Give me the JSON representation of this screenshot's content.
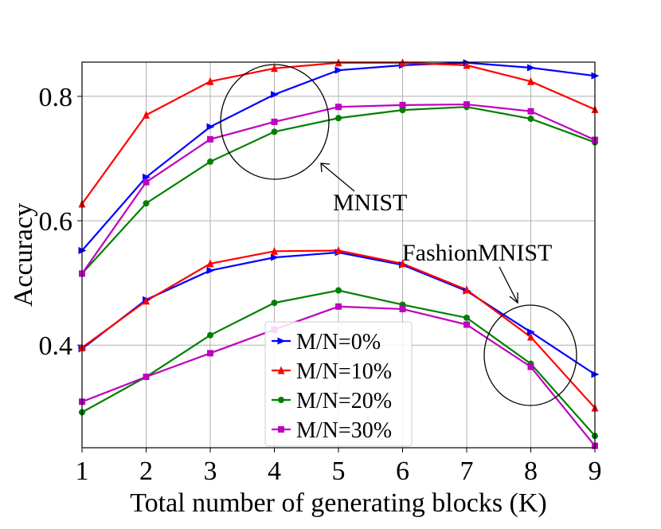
{
  "chart_data": {
    "type": "line",
    "title": "",
    "xlabel": "Total number of generating blocks (K)",
    "ylabel": "Accuracy",
    "x": [
      1,
      2,
      3,
      4,
      5,
      6,
      7,
      8,
      9
    ],
    "xlim": [
      1,
      9
    ],
    "ylim": [
      0.235,
      0.855
    ],
    "xticks": [
      "1",
      "2",
      "3",
      "4",
      "5",
      "6",
      "7",
      "8",
      "9"
    ],
    "yticks": [
      "0.4",
      "0.6",
      "0.8"
    ],
    "ytick_values": [
      0.4,
      0.6,
      0.8
    ],
    "grid": true,
    "legend_position": "bottom-center",
    "groups": [
      {
        "name": "MNIST",
        "series": [
          {
            "name": "M/N=0%",
            "color": "#0000ff",
            "marker": "triangle-right",
            "values": [
              0.552,
              0.67,
              0.751,
              0.803,
              0.842,
              0.85,
              0.854,
              0.846,
              0.833
            ]
          },
          {
            "name": "M/N=10%",
            "color": "#ff0000",
            "marker": "triangle-up",
            "values": [
              0.627,
              0.77,
              0.824,
              0.845,
              0.854,
              0.854,
              0.85,
              0.824,
              0.779
            ]
          },
          {
            "name": "M/N=20%",
            "color": "#008000",
            "marker": "circle",
            "values": [
              0.515,
              0.628,
              0.695,
              0.743,
              0.765,
              0.778,
              0.783,
              0.764,
              0.726
            ]
          },
          {
            "name": "M/N=30%",
            "color": "#bf00bf",
            "marker": "square",
            "values": [
              0.515,
              0.662,
              0.731,
              0.759,
              0.783,
              0.786,
              0.787,
              0.776,
              0.73
            ]
          }
        ]
      },
      {
        "name": "FashionMNIST",
        "series": [
          {
            "name": "M/N=0%",
            "color": "#0000ff",
            "marker": "triangle-right",
            "values": [
              0.394,
              0.473,
              0.52,
              0.541,
              0.549,
              0.529,
              0.487,
              0.421,
              0.353
            ]
          },
          {
            "name": "M/N=10%",
            "color": "#ff0000",
            "marker": "triangle-up",
            "values": [
              0.396,
              0.471,
              0.531,
              0.551,
              0.552,
              0.531,
              0.489,
              0.413,
              0.299
            ]
          },
          {
            "name": "M/N=20%",
            "color": "#008000",
            "marker": "circle",
            "values": [
              0.292,
              0.349,
              0.416,
              0.468,
              0.488,
              0.465,
              0.444,
              0.37,
              0.254
            ]
          },
          {
            "name": "M/N=30%",
            "color": "#bf00bf",
            "marker": "square",
            "values": [
              0.309,
              0.349,
              0.387,
              0.425,
              0.462,
              0.458,
              0.433,
              0.365,
              0.238
            ]
          }
        ]
      }
    ],
    "legend": [
      "M/N=0%",
      "M/N=10%",
      "M/N=20%",
      "M/N=30%"
    ],
    "annotations": [
      "MNIST",
      "FashionMNIST"
    ]
  }
}
